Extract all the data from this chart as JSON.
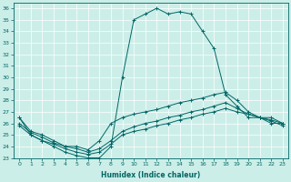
{
  "xlabel": "Humidex (Indice chaleur)",
  "bg_color": "#cceee8",
  "line_color": "#006666",
  "xlim": [
    -0.5,
    23.5
  ],
  "ylim": [
    23,
    36.5
  ],
  "yticks": [
    23,
    24,
    25,
    26,
    27,
    28,
    29,
    30,
    31,
    32,
    33,
    34,
    35,
    36
  ],
  "xticks": [
    0,
    1,
    2,
    3,
    4,
    5,
    6,
    7,
    8,
    9,
    10,
    11,
    12,
    13,
    14,
    15,
    16,
    17,
    18,
    19,
    20,
    21,
    22,
    23
  ],
  "line1_x": [
    0,
    1,
    2,
    3,
    4,
    5,
    6,
    7,
    8,
    9,
    10,
    11,
    12,
    13,
    14,
    15,
    16,
    17,
    18,
    19,
    20,
    21,
    22,
    23
  ],
  "line1_y": [
    26.5,
    25.0,
    24.5,
    24.0,
    23.5,
    23.2,
    23.0,
    23.0,
    24.0,
    30.0,
    35.0,
    35.5,
    36.0,
    35.5,
    35.7,
    35.5,
    34.0,
    32.5,
    28.5,
    27.5,
    26.5,
    26.5,
    26.0,
    26.0
  ],
  "line2_x": [
    0,
    1,
    2,
    3,
    4,
    5,
    6,
    7,
    8,
    9,
    10,
    11,
    12,
    13,
    14,
    15,
    16,
    17,
    18,
    19,
    20,
    21,
    22,
    23
  ],
  "line2_y": [
    26.5,
    25.3,
    25.0,
    24.5,
    24.0,
    24.0,
    23.7,
    24.5,
    26.0,
    26.5,
    26.8,
    27.0,
    27.2,
    27.5,
    27.8,
    28.0,
    28.2,
    28.5,
    28.7,
    28.0,
    27.0,
    26.5,
    26.5,
    26.0
  ],
  "line3_x": [
    0,
    1,
    2,
    3,
    4,
    5,
    6,
    7,
    8,
    9,
    10,
    11,
    12,
    13,
    14,
    15,
    16,
    17,
    18,
    19,
    20,
    21,
    22,
    23
  ],
  "line3_y": [
    26.0,
    25.2,
    24.8,
    24.3,
    24.0,
    23.8,
    23.5,
    23.8,
    24.5,
    25.3,
    25.7,
    26.0,
    26.2,
    26.5,
    26.7,
    27.0,
    27.2,
    27.5,
    27.8,
    27.3,
    26.8,
    26.5,
    26.3,
    26.0
  ],
  "line4_x": [
    0,
    1,
    2,
    3,
    4,
    5,
    6,
    7,
    8,
    9,
    10,
    11,
    12,
    13,
    14,
    15,
    16,
    17,
    18,
    19,
    20,
    21,
    22,
    23
  ],
  "line4_y": [
    25.8,
    25.0,
    24.5,
    24.2,
    23.8,
    23.5,
    23.3,
    23.5,
    24.2,
    25.0,
    25.3,
    25.5,
    25.8,
    26.0,
    26.3,
    26.5,
    26.8,
    27.0,
    27.3,
    27.0,
    26.8,
    26.5,
    26.2,
    25.8
  ]
}
